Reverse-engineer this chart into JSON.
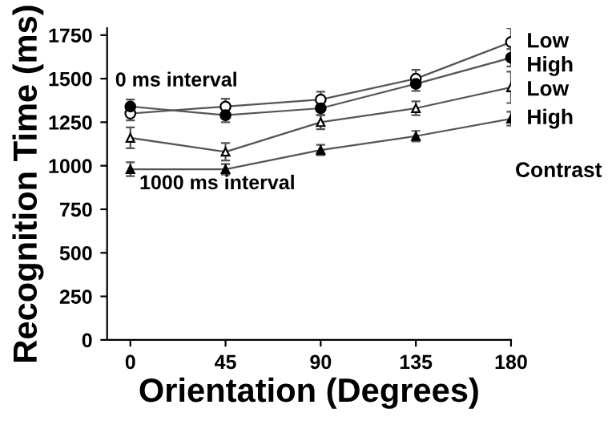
{
  "chart_data": {
    "type": "line",
    "xlabel": "Orientation (Degrees)",
    "ylabel": "Recognition Time (ms)",
    "x": [
      0,
      45,
      90,
      135,
      180
    ],
    "series": [
      {
        "name": "Low",
        "color": "#ffffff",
        "marker": "circle",
        "values": [
          1300,
          1340,
          1380,
          1500,
          1710
        ],
        "errors": [
          40,
          45,
          45,
          50,
          80
        ]
      },
      {
        "name": "High",
        "color": "#000000",
        "marker": "circle",
        "values": [
          1340,
          1290,
          1330,
          1470,
          1620
        ],
        "errors": [
          40,
          40,
          40,
          40,
          50
        ]
      },
      {
        "name": "Low",
        "color": "#ffffff",
        "marker": "triangle",
        "values": [
          1160,
          1080,
          1250,
          1330,
          1450
        ],
        "errors": [
          60,
          50,
          40,
          40,
          90
        ]
      },
      {
        "name": "High",
        "color": "#000000",
        "marker": "triangle",
        "values": [
          980,
          980,
          1090,
          1170,
          1270
        ],
        "errors": [
          40,
          30,
          30,
          30,
          40
        ]
      }
    ],
    "annotations": [
      "0 ms interval",
      "1000 ms interval",
      "Contrast"
    ],
    "xlim": [
      -11,
      180
    ],
    "ylim": [
      0,
      1790
    ],
    "xticks": [
      0,
      45,
      90,
      135,
      180
    ],
    "yticks": [
      0,
      250,
      500,
      750,
      1000,
      1250,
      1500,
      1750
    ],
    "grid": false,
    "legend": false
  }
}
